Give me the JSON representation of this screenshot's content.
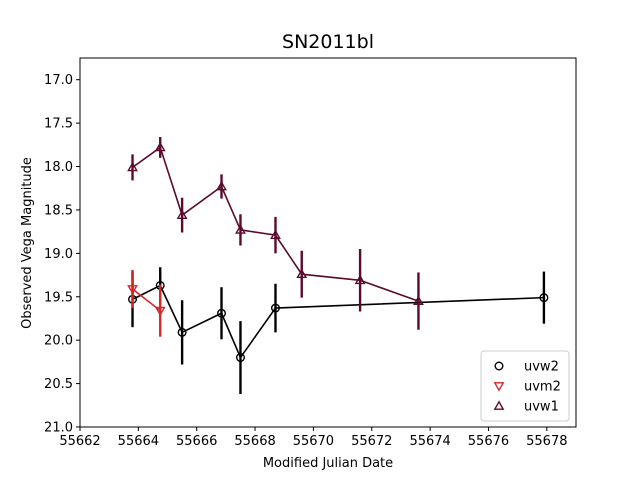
{
  "chart_data": {
    "type": "scatter",
    "title": "SN2011bl",
    "xlabel": "Modified Julian Date",
    "ylabel": "Observed Vega Magnitude",
    "xlim": [
      55662,
      55679
    ],
    "ylim": [
      21.0,
      16.75
    ],
    "y_inverted": true,
    "xticks": [
      55662,
      55664,
      55666,
      55668,
      55670,
      55672,
      55674,
      55676,
      55678
    ],
    "yticks": [
      17.0,
      17.5,
      18.0,
      18.5,
      19.0,
      19.5,
      20.0,
      20.5,
      21.0
    ],
    "grid": false,
    "legend_position": "lower-right",
    "series": [
      {
        "name": "uvw2",
        "color": "#000000",
        "marker": "circle",
        "x": [
          55663.8,
          55664.75,
          55665.5,
          55666.85,
          55667.5,
          55668.7,
          55677.9
        ],
        "y": [
          19.53,
          19.37,
          19.91,
          19.69,
          20.2,
          19.63,
          19.51
        ],
        "err": [
          0.32,
          0.21,
          0.37,
          0.3,
          0.42,
          0.28,
          0.3
        ]
      },
      {
        "name": "uvm2",
        "color": "#d62728",
        "marker": "triangle-down",
        "x": [
          55663.8,
          55664.75
        ],
        "y": [
          19.41,
          19.66
        ],
        "err": [
          0.22,
          0.3
        ]
      },
      {
        "name": "uvw1",
        "color": "#5c0a2e",
        "marker": "triangle-up",
        "x": [
          55663.8,
          55664.75,
          55665.5,
          55666.85,
          55667.5,
          55668.7,
          55669.6,
          55671.6,
          55673.6
        ],
        "y": [
          18.01,
          17.78,
          18.56,
          18.23,
          18.73,
          18.79,
          19.24,
          19.31,
          19.55
        ],
        "err": [
          0.15,
          0.12,
          0.2,
          0.14,
          0.18,
          0.21,
          0.27,
          0.36,
          0.33
        ]
      }
    ]
  }
}
